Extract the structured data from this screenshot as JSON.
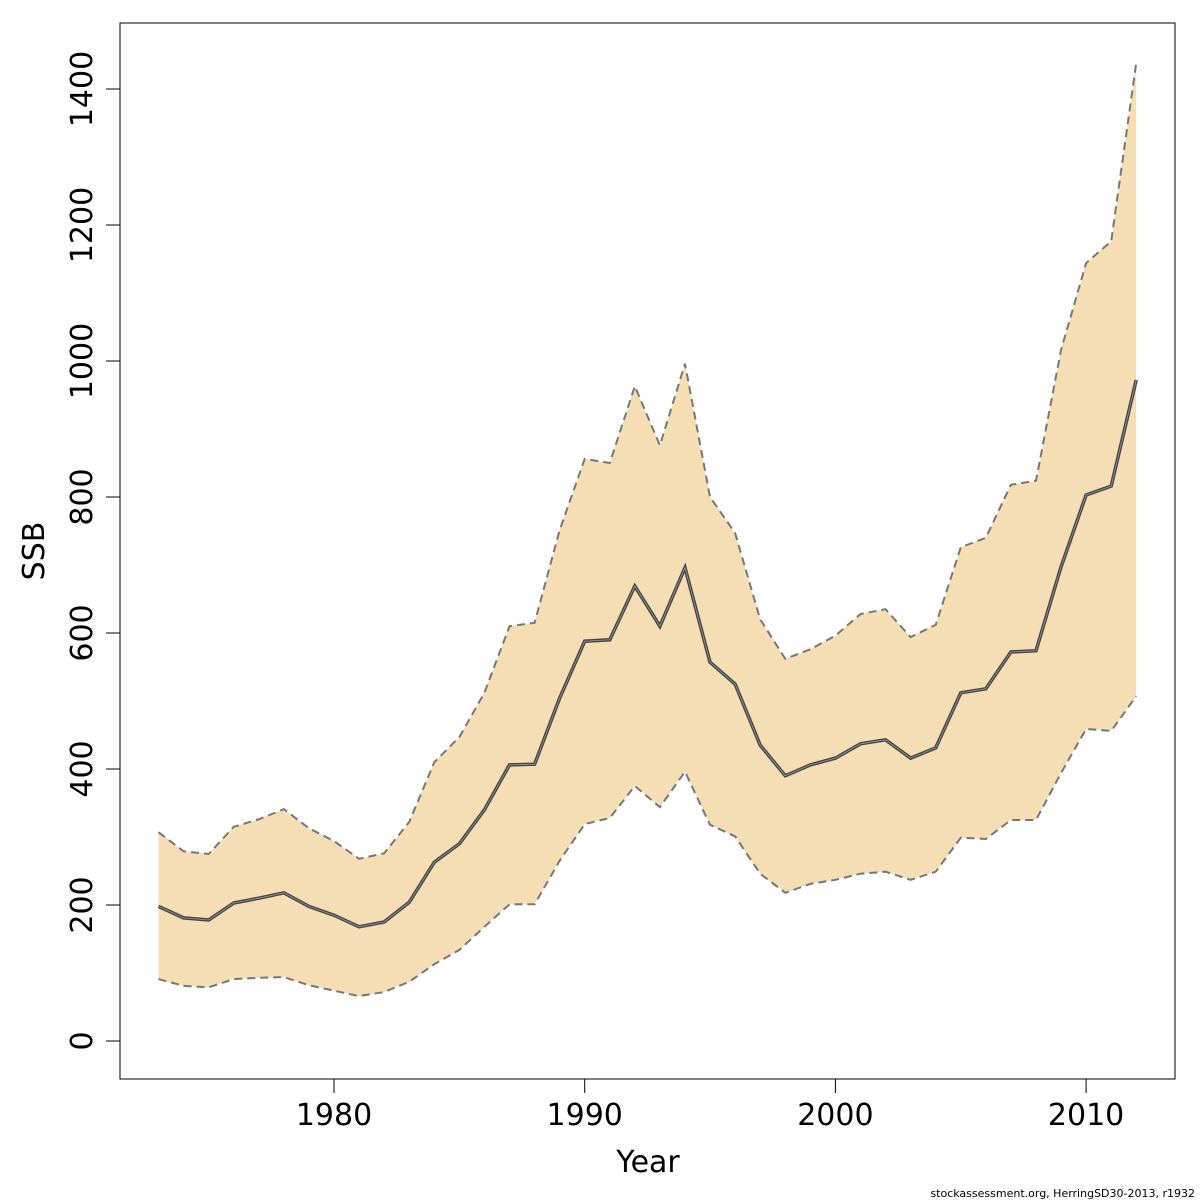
{
  "chart_data": {
    "type": "area",
    "xlabel": "Year",
    "ylabel": "SSB",
    "xlim": [
      1971.5,
      2013.5
    ],
    "ylim": [
      -55,
      1500
    ],
    "x_ticks": [
      1980,
      1990,
      2000,
      2010
    ],
    "y_ticks": [
      0,
      200,
      400,
      600,
      800,
      1000,
      1200,
      1400
    ],
    "grid": false,
    "fill_color": "#F5DEB3",
    "line_color": "#444444",
    "bound_color": "#777777",
    "x": [
      1973,
      1974,
      1975,
      1976,
      1977,
      1978,
      1979,
      1980,
      1981,
      1982,
      1983,
      1984,
      1985,
      1986,
      1987,
      1988,
      1989,
      1990,
      1991,
      1992,
      1993,
      1994,
      1995,
      1996,
      1997,
      1998,
      1999,
      2000,
      2001,
      2002,
      2003,
      2004,
      2005,
      2006,
      2007,
      2008,
      2009,
      2010,
      2011,
      2012
    ],
    "series": [
      {
        "role": "median",
        "values": [
          198,
          181,
          178,
          203,
          210,
          218,
          198,
          185,
          168,
          175,
          204,
          263,
          290,
          340,
          406,
          407,
          504,
          588,
          590,
          669,
          610,
          696,
          557,
          525,
          435,
          390,
          406,
          416,
          437,
          443,
          416,
          431,
          512,
          518,
          572,
          574,
          697,
          803,
          816,
          972
        ]
      },
      {
        "role": "upper",
        "values": [
          307,
          279,
          275,
          315,
          326,
          341,
          313,
          294,
          268,
          276,
          322,
          410,
          447,
          512,
          610,
          615,
          751,
          856,
          850,
          963,
          876,
          996,
          800,
          747,
          620,
          562,
          576,
          596,
          628,
          635,
          594,
          612,
          726,
          740,
          818,
          824,
          1016,
          1144,
          1176,
          1438
        ]
      },
      {
        "role": "lower",
        "values": [
          91,
          81,
          79,
          91,
          93,
          94,
          82,
          74,
          66,
          72,
          87,
          113,
          134,
          168,
          201,
          201,
          265,
          319,
          328,
          375,
          344,
          396,
          318,
          301,
          246,
          218,
          231,
          237,
          246,
          249,
          237,
          249,
          299,
          297,
          325,
          325,
          394,
          459,
          456,
          507
        ]
      }
    ]
  },
  "footer": "stockassessment.org, HerringSD30-2013, r1932"
}
